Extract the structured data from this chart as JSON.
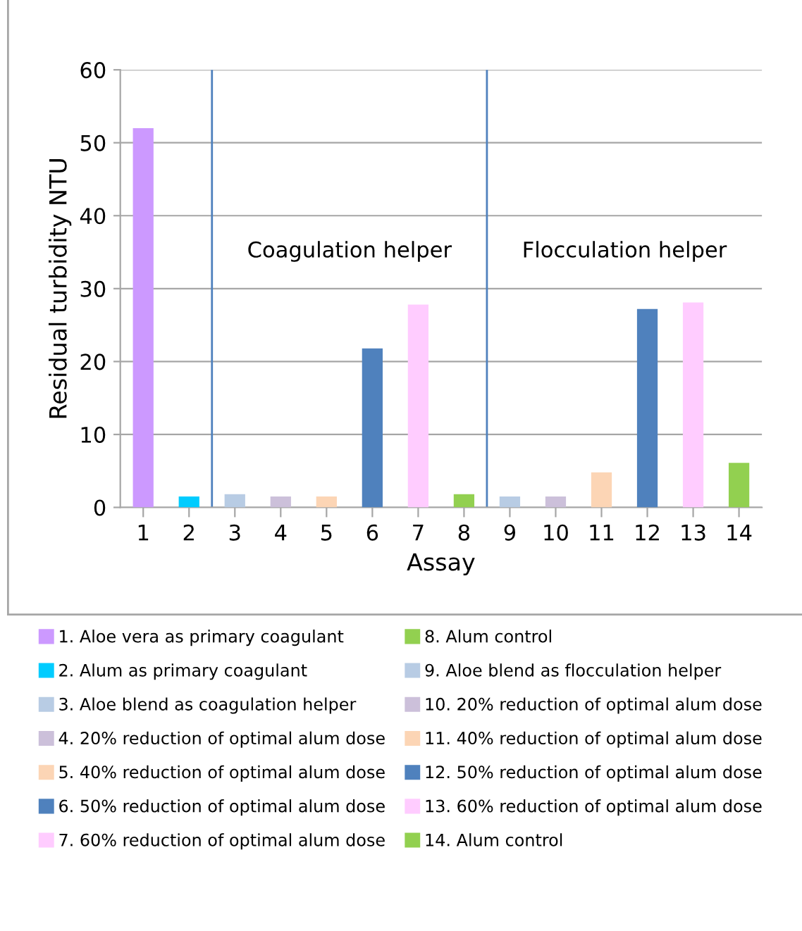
{
  "chart_data": {
    "type": "bar",
    "xlabel": "Assay",
    "ylabel": "Residual turbidity NTU",
    "xlim": [
      0.5,
      14.5
    ],
    "xticks": [
      1,
      2,
      3,
      4,
      5,
      6,
      7,
      8,
      9,
      10,
      11,
      12,
      13,
      14
    ],
    "ylim": [
      0,
      60
    ],
    "yticks": [
      0,
      10,
      20,
      30,
      40,
      50,
      60
    ],
    "grid": "y",
    "legend": "bottom",
    "series": [
      {
        "name": "1. Aloe vera as primary coagulant",
        "color": "#cc99ff",
        "x": [
          1
        ],
        "values": [
          52
        ]
      },
      {
        "name": "2. Alum as primary coagulant",
        "color": "#00ccff",
        "x": [
          2
        ],
        "values": [
          1.5
        ]
      },
      {
        "name": "3. Aloe blend as coagulation helper",
        "color": "#b8cce4",
        "x": [
          3
        ],
        "values": [
          1.8
        ]
      },
      {
        "name": "4. 20% reduction of optimal alum dose",
        "color": "#ccc0da",
        "x": [
          4
        ],
        "values": [
          1.5
        ]
      },
      {
        "name": "5. 40% reduction of optimal alum dose",
        "color": "#fcd5b5",
        "x": [
          5
        ],
        "values": [
          1.5
        ]
      },
      {
        "name": "6. 50% reduction of optimal alum dose",
        "color": "#4f81bd",
        "x": [
          6
        ],
        "values": [
          21.8
        ]
      },
      {
        "name": "7. 60% reduction of optimal alum dose",
        "color": "#ffccff",
        "x": [
          7
        ],
        "values": [
          27.8
        ]
      },
      {
        "name": "8. Alum control",
        "color": "#92d050",
        "x": [
          8
        ],
        "values": [
          1.8
        ]
      },
      {
        "name": "9. Aloe blend as flocculation helper",
        "color": "#b8cce4",
        "x": [
          9
        ],
        "values": [
          1.5
        ]
      },
      {
        "name": "10. 20% reduction of optimal alum dose",
        "color": "#ccc0da",
        "x": [
          10
        ],
        "values": [
          1.5
        ]
      },
      {
        "name": "11. 40% reduction of optimal alum dose",
        "color": "#fcd5b5",
        "x": [
          11
        ],
        "values": [
          4.8
        ]
      },
      {
        "name": "12. 50% reduction of optimal alum dose",
        "color": "#4f81bd",
        "x": [
          12
        ],
        "values": [
          27.2
        ]
      },
      {
        "name": "13. 60% reduction of optimal alum dose",
        "color": "#ffccff",
        "x": [
          13
        ],
        "values": [
          28.1
        ]
      },
      {
        "name": "14. Alum control",
        "color": "#92d050",
        "x": [
          14
        ],
        "values": [
          6.1
        ]
      }
    ],
    "ref_lines": [
      {
        "axis": "x",
        "value": 2.5,
        "color": "#4f81bd"
      },
      {
        "axis": "x",
        "value": 8.5,
        "color": "#4f81bd"
      }
    ],
    "annotations": [
      "Coagulation helper",
      "Flocculation helper"
    ]
  }
}
